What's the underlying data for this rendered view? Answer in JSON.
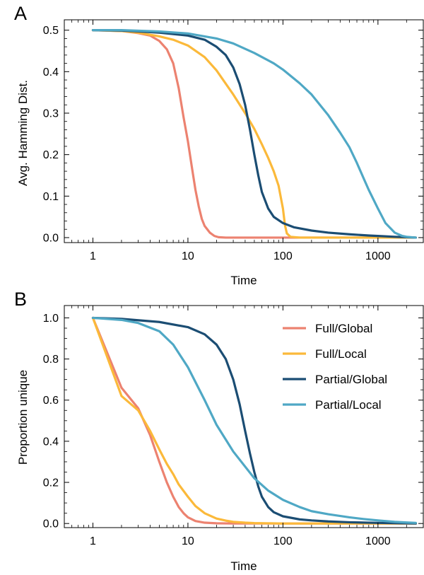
{
  "colors": {
    "full_global": "#ec8270",
    "full_local": "#fbb93a",
    "partial_global": "#1b4d73",
    "partial_local": "#4fa8c5"
  },
  "chart_data": [
    {
      "panel": "A",
      "type": "line",
      "title": "",
      "xlabel": "Time",
      "ylabel": "Avg. Hamming Dist.",
      "xscale": "log",
      "xlim": [
        0.5,
        3000
      ],
      "ylim": [
        -0.012,
        0.525
      ],
      "xticks": [
        1,
        10,
        100,
        1000
      ],
      "xtick_labels": [
        "1",
        "10",
        "100",
        "1000"
      ],
      "yticks": [
        0.0,
        0.1,
        0.2,
        0.3,
        0.4,
        0.5
      ],
      "ytick_labels": [
        "0.0",
        "0.1",
        "0.2",
        "0.3",
        "0.4",
        "0.5"
      ],
      "grid": false,
      "legend": false,
      "series": [
        {
          "key": "full_global",
          "color": "#ec8270",
          "x": [
            1,
            2,
            3,
            4,
            5,
            6,
            7,
            8,
            9,
            10,
            11,
            12,
            13,
            14,
            15,
            17,
            19,
            21,
            25,
            30,
            50,
            2500
          ],
          "y": [
            0.5,
            0.498,
            0.493,
            0.487,
            0.474,
            0.454,
            0.42,
            0.36,
            0.29,
            0.232,
            0.17,
            0.115,
            0.075,
            0.045,
            0.028,
            0.012,
            0.004,
            0.001,
            0.0,
            0.0,
            0.0,
            0.0
          ]
        },
        {
          "key": "full_local",
          "color": "#fbb93a",
          "x": [
            1,
            2,
            3,
            5,
            7,
            10,
            15,
            20,
            30,
            40,
            50,
            60,
            70,
            80,
            90,
            100,
            105,
            110,
            120,
            150,
            2500
          ],
          "y": [
            0.5,
            0.498,
            0.494,
            0.485,
            0.477,
            0.463,
            0.435,
            0.403,
            0.345,
            0.3,
            0.262,
            0.225,
            0.192,
            0.16,
            0.125,
            0.07,
            0.03,
            0.01,
            0.002,
            0.0,
            0.0
          ]
        },
        {
          "key": "partial_global",
          "color": "#1b4d73",
          "x": [
            1,
            2,
            3,
            5,
            10,
            15,
            20,
            25,
            30,
            35,
            40,
            45,
            50,
            55,
            60,
            70,
            80,
            100,
            130,
            200,
            300,
            500,
            800,
            1000,
            1500,
            2000,
            2500
          ],
          "y": [
            0.5,
            0.499,
            0.497,
            0.494,
            0.487,
            0.477,
            0.46,
            0.44,
            0.41,
            0.37,
            0.32,
            0.26,
            0.2,
            0.15,
            0.11,
            0.07,
            0.05,
            0.035,
            0.025,
            0.017,
            0.012,
            0.008,
            0.005,
            0.004,
            0.002,
            0.001,
            0.0
          ]
        },
        {
          "key": "partial_local",
          "color": "#4fa8c5",
          "x": [
            1,
            2,
            5,
            10,
            20,
            30,
            50,
            80,
            100,
            150,
            200,
            300,
            400,
            500,
            600,
            700,
            800,
            1000,
            1200,
            1500,
            1800,
            2000,
            2500
          ],
          "y": [
            0.5,
            0.5,
            0.497,
            0.492,
            0.48,
            0.468,
            0.445,
            0.42,
            0.405,
            0.372,
            0.345,
            0.295,
            0.253,
            0.218,
            0.18,
            0.145,
            0.115,
            0.07,
            0.035,
            0.012,
            0.004,
            0.002,
            0.0
          ]
        }
      ]
    },
    {
      "panel": "B",
      "type": "line",
      "title": "",
      "xlabel": "Time",
      "ylabel": "Proportion unique",
      "xscale": "log",
      "xlim": [
        0.5,
        3000
      ],
      "ylim": [
        -0.02,
        1.06
      ],
      "xticks": [
        1,
        10,
        100,
        1000
      ],
      "xtick_labels": [
        "1",
        "10",
        "100",
        "1000"
      ],
      "yticks": [
        0.0,
        0.2,
        0.4,
        0.6,
        0.8,
        1.0
      ],
      "ytick_labels": [
        "0.0",
        "0.2",
        "0.4",
        "0.6",
        "0.8",
        "1.0"
      ],
      "grid": false,
      "legend": true,
      "legend_position": "top-right",
      "series": [
        {
          "key": "full_global",
          "name": "Full/Global",
          "color": "#ec8270",
          "x": [
            1,
            2,
            3,
            4,
            5,
            6,
            7,
            8,
            9,
            10,
            12,
            15,
            20,
            30,
            50,
            100,
            2500
          ],
          "y": [
            1.0,
            0.66,
            0.56,
            0.43,
            0.3,
            0.2,
            0.13,
            0.08,
            0.05,
            0.03,
            0.012,
            0.004,
            0.001,
            0.0,
            0.0,
            0.0,
            0.0
          ]
        },
        {
          "key": "full_local",
          "name": "Full/Local",
          "color": "#fbb93a",
          "x": [
            1,
            2,
            3,
            4,
            5,
            6,
            7,
            8,
            10,
            12,
            15,
            20,
            25,
            30,
            40,
            50,
            100,
            2500
          ],
          "y": [
            1.0,
            0.62,
            0.55,
            0.45,
            0.36,
            0.29,
            0.24,
            0.19,
            0.13,
            0.085,
            0.05,
            0.024,
            0.014,
            0.008,
            0.004,
            0.002,
            0.0,
            0.0
          ]
        },
        {
          "key": "partial_global",
          "name": "Partial/Global",
          "color": "#1b4d73",
          "x": [
            1,
            2,
            5,
            10,
            15,
            20,
            25,
            30,
            35,
            40,
            45,
            50,
            55,
            60,
            70,
            80,
            100,
            150,
            200,
            300,
            500,
            1000,
            2500
          ],
          "y": [
            1.0,
            0.995,
            0.98,
            0.955,
            0.92,
            0.87,
            0.8,
            0.7,
            0.58,
            0.45,
            0.34,
            0.25,
            0.18,
            0.13,
            0.08,
            0.055,
            0.035,
            0.02,
            0.015,
            0.01,
            0.006,
            0.003,
            0.0
          ]
        },
        {
          "key": "partial_local",
          "name": "Partial/Local",
          "color": "#4fa8c5",
          "x": [
            1,
            2,
            3,
            5,
            7,
            10,
            15,
            20,
            30,
            50,
            70,
            100,
            150,
            200,
            300,
            500,
            700,
            1000,
            1500,
            2000,
            2500
          ],
          "y": [
            1.0,
            0.99,
            0.975,
            0.935,
            0.87,
            0.76,
            0.6,
            0.48,
            0.35,
            0.22,
            0.16,
            0.115,
            0.08,
            0.06,
            0.045,
            0.03,
            0.022,
            0.015,
            0.008,
            0.005,
            0.003
          ]
        }
      ]
    }
  ]
}
